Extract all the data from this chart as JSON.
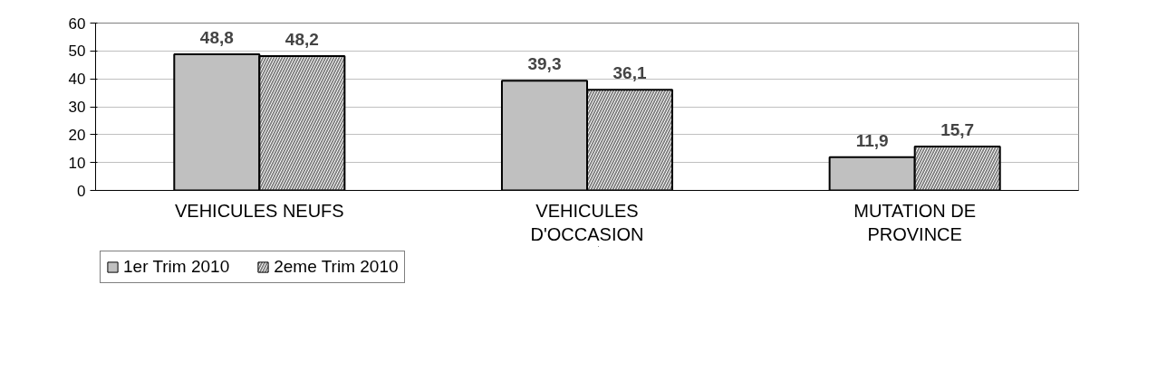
{
  "chart_data": {
    "type": "bar",
    "categories": [
      "VEHICULES NEUFS",
      "VEHICULES D'OCCASION",
      "MUTATION DE PROVINCE"
    ],
    "series": [
      {
        "name": "1er Trim 2010",
        "color": "#c0c0c0",
        "values": [
          48.8,
          39.3,
          11.9
        ],
        "value_labels": [
          "48,8",
          "39,3",
          "11,9"
        ]
      },
      {
        "name": "2eme Trim 2010",
        "color": "#808080",
        "values": [
          48.2,
          36.1,
          15.7
        ],
        "value_labels": [
          "48,2",
          "36,1",
          "15,7"
        ]
      }
    ],
    "ylim": [
      0,
      60
    ],
    "yticks": [
      0,
      10,
      20,
      30,
      40,
      50,
      60
    ],
    "grid": "y",
    "legend": "bottom left"
  }
}
